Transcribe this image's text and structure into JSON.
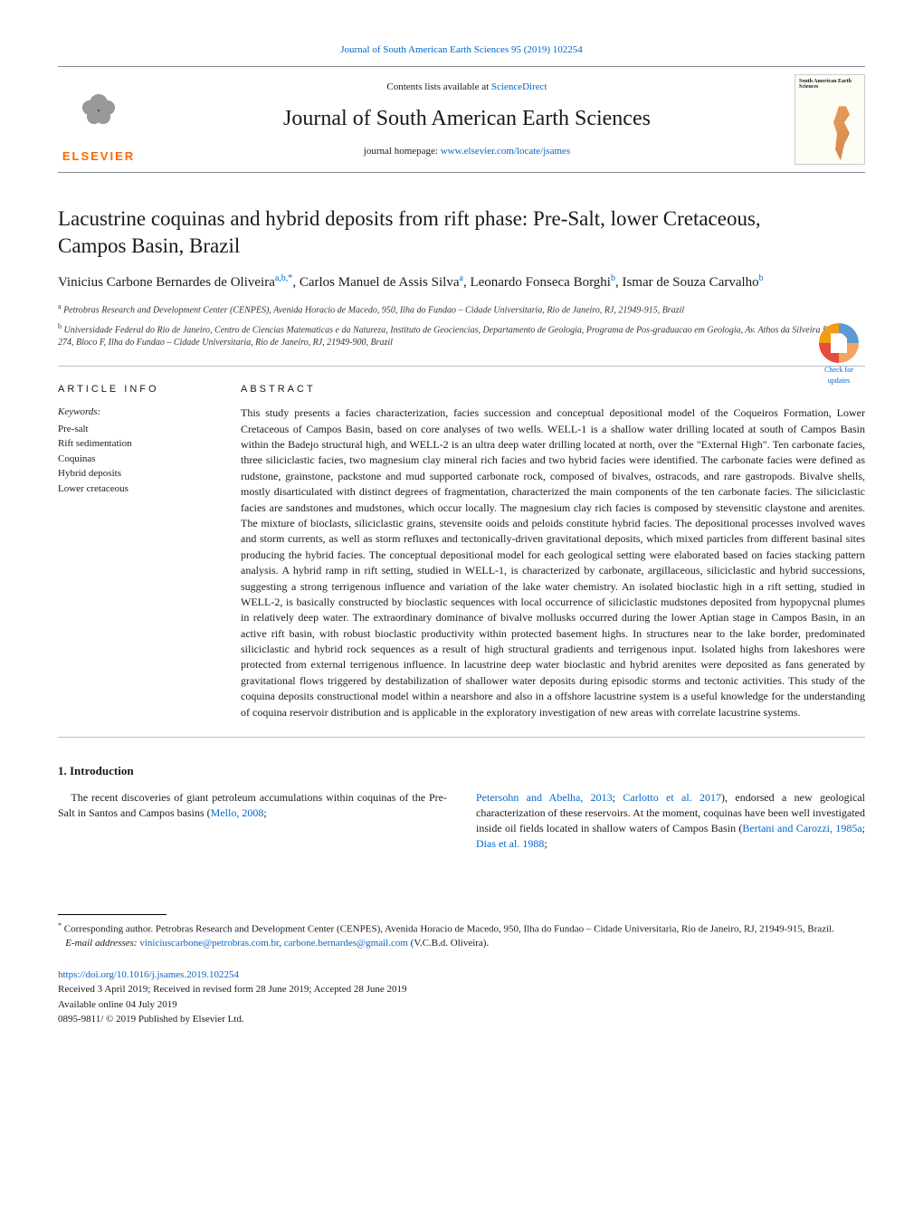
{
  "top_citation": "Journal of South American Earth Sciences 95 (2019) 102254",
  "contents_prefix": "Contents lists available at ",
  "contents_link": "ScienceDirect",
  "journal_name": "Journal of South American Earth Sciences",
  "homepage_prefix": "journal homepage: ",
  "homepage_link": "www.elsevier.com/locate/jsames",
  "elsevier_label": "ELSEVIER",
  "cover_small_title": "South American Earth Sciences",
  "check_updates_label": "Check for updates",
  "article_title": "Lacustrine coquinas and hybrid deposits from rift phase: Pre-Salt, lower Cretaceous, Campos Basin, Brazil",
  "authors": {
    "a1_name": "Vinicius Carbone Bernardes de Oliveira",
    "a1_aff": "a,b,*",
    "a2_name": "Carlos Manuel de Assis Silva",
    "a2_aff": "a",
    "a3_name": "Leonardo Fonseca Borghi",
    "a3_aff": "b",
    "a4_name": "Ismar de Souza Carvalho",
    "a4_aff": "b"
  },
  "affiliations": {
    "a": "Petrobras Research and Development Center (CENPES), Avenida Horacio de Macedo, 950, Ilha do Fundao – Cidade Universitaria, Rio de Janeiro, RJ, 21949-915, Brazil",
    "b": "Universidade Federal do Rio de Janeiro, Centro de Ciencias Matematicas e da Natureza, Instituto de Geociencias, Departamento de Geologia, Programa de Pos-graduacao em Geologia, Av. Athos da Silveira Ramos, 274, Bloco F, Ilha do Fundao – Cidade Universitaria, Rio de Janeiro, RJ, 21949-900, Brazil"
  },
  "info_head": "ARTICLE INFO",
  "abstract_head": "ABSTRACT",
  "keywords_label": "Keywords:",
  "keywords": [
    "Pre-salt",
    "Rift sedimentation",
    "Coquinas",
    "Hybrid deposits",
    "Lower cretaceous"
  ],
  "abstract_text": "This study presents a facies characterization, facies succession and conceptual depositional model of the Coqueiros Formation, Lower Cretaceous of Campos Basin, based on core analyses of two wells. WELL-1 is a shallow water drilling located at south of Campos Basin within the Badejo structural high, and WELL-2 is an ultra deep water drilling located at north, over the \"External High\". Ten carbonate facies, three siliciclastic facies, two magnesium clay mineral rich facies and two hybrid facies were identified. The carbonate facies were defined as rudstone, grainstone, packstone and mud supported carbonate rock, composed of bivalves, ostracods, and rare gastropods. Bivalve shells, mostly disarticulated with distinct degrees of fragmentation, characterized the main components of the ten carbonate facies. The siliciclastic facies are sandstones and mudstones, which occur locally. The magnesium clay rich facies is composed by stevensitic claystone and arenites. The mixture of bioclasts, siliciclastic grains, stevensite ooids and peloids constitute hybrid facies. The depositional processes involved waves and storm currents, as well as storm refluxes and tectonically-driven gravitational deposits, which mixed particles from different basinal sites producing the hybrid facies. The conceptual depositional model for each geological setting were elaborated based on facies stacking pattern analysis. A hybrid ramp in rift setting, studied in WELL-1, is characterized by carbonate, argillaceous, siliciclastic and hybrid successions, suggesting a strong terrigenous influence and variation of the lake water chemistry. An isolated bioclastic high in a rift setting, studied in WELL-2, is basically constructed by bioclastic sequences with local occurrence of siliciclastic mudstones deposited from hypopycnal plumes in relatively deep water. The extraordinary dominance of bivalve mollusks occurred during the lower Aptian stage in Campos Basin, in an active rift basin, with robust bioclastic productivity within protected basement highs. In structures near to the lake border, predominated siliciclastic and hybrid rock sequences as a result of high structural gradients and terrigenous input. Isolated highs from lakeshores were protected from external terrigenous influence. In lacustrine deep water bioclastic and hybrid arenites were deposited as fans generated by gravitational flows triggered by destabilization of shallower water deposits during episodic storms and tectonic activities. This study of the coquina deposits constructional model within a nearshore and also in a offshore lacustrine system is a useful knowledge for the understanding of coquina reservoir distribution and is applicable in the exploratory investigation of new areas with correlate lacustrine systems.",
  "intro_head": "1. Introduction",
  "intro_col1_pre": "The recent discoveries of giant petroleum accumulations within coquinas of the Pre-Salt in Santos and Campos basins (",
  "intro_col1_ref1": "Mello, 2008",
  "intro_col1_post": ";",
  "intro_col2_ref1": "Petersohn and Abelha, 2013",
  "intro_col2_sep1": "; ",
  "intro_col2_ref2": "Carlotto et al. 2017",
  "intro_col2_mid": "), endorsed a new geological characterization of these reservoirs. At the moment, coquinas have been well investigated inside oil fields located in shallow waters of Campos Basin (",
  "intro_col2_ref3": "Bertani and Carozzi, 1985a",
  "intro_col2_sep2": "; ",
  "intro_col2_ref4": "Dias et al. 1988",
  "intro_col2_post": ";",
  "footnote_corr": "Corresponding author. Petrobras Research and Development Center (CENPES), Avenida Horacio de Macedo, 950, Ilha do Fundao – Cidade Universitaria, Rio de Janeiro, RJ, 21949-915, Brazil.",
  "footnote_email_label": "E-mail addresses: ",
  "footnote_email1": "viniciuscarbone@petrobras.com.br",
  "footnote_email_sep": ", ",
  "footnote_email2": "carbone.bernardes@gmail.com",
  "footnote_email_suffix": " (V.C.B.d. Oliveira).",
  "doi": "https://doi.org/10.1016/j.jsames.2019.102254",
  "history": "Received 3 April 2019; Received in revised form 28 June 2019; Accepted 28 June 2019",
  "available": "Available online 04 July 2019",
  "copyright": "0895-9811/ © 2019 Published by Elsevier Ltd.",
  "colors": {
    "link": "#0066cc",
    "elsevier_orange": "#ff6600",
    "rule": "#bbbbbb",
    "text": "#1a1a1a"
  }
}
